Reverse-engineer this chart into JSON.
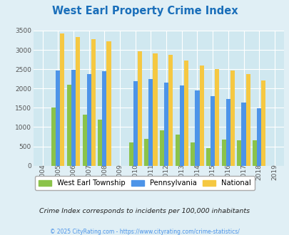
{
  "title": "West Earl Property Crime Index",
  "title_color": "#1a6fba",
  "years": [
    2004,
    2005,
    2006,
    2007,
    2008,
    2009,
    2010,
    2011,
    2012,
    2013,
    2014,
    2015,
    2016,
    2017,
    2018,
    2019
  ],
  "west_earl": [
    0,
    1500,
    2100,
    1320,
    1190,
    0,
    600,
    700,
    920,
    800,
    600,
    460,
    680,
    660,
    660,
    0
  ],
  "pennsylvania": [
    0,
    2470,
    2480,
    2380,
    2450,
    0,
    2180,
    2250,
    2160,
    2080,
    1950,
    1800,
    1720,
    1640,
    1490,
    0
  ],
  "national": [
    0,
    3430,
    3340,
    3270,
    3220,
    0,
    2960,
    2900,
    2870,
    2720,
    2600,
    2500,
    2470,
    2380,
    2210,
    0
  ],
  "west_earl_color": "#8bc34a",
  "pennsylvania_color": "#4d94e8",
  "national_color": "#f5c842",
  "bg_color": "#e0eff5",
  "plot_bg": "#d0e8f0",
  "ylim": [
    0,
    3500
  ],
  "yticks": [
    0,
    500,
    1000,
    1500,
    2000,
    2500,
    3000,
    3500
  ],
  "bar_width": 0.28,
  "subtitle": "Crime Index corresponds to incidents per 100,000 inhabitants",
  "subtitle_color": "#222222",
  "footer": "© 2025 CityRating.com - https://www.cityrating.com/crime-statistics/",
  "footer_color": "#4d94e8",
  "legend_labels": [
    "West Earl Township",
    "Pennsylvania",
    "National"
  ],
  "grid_color": "#ffffff"
}
